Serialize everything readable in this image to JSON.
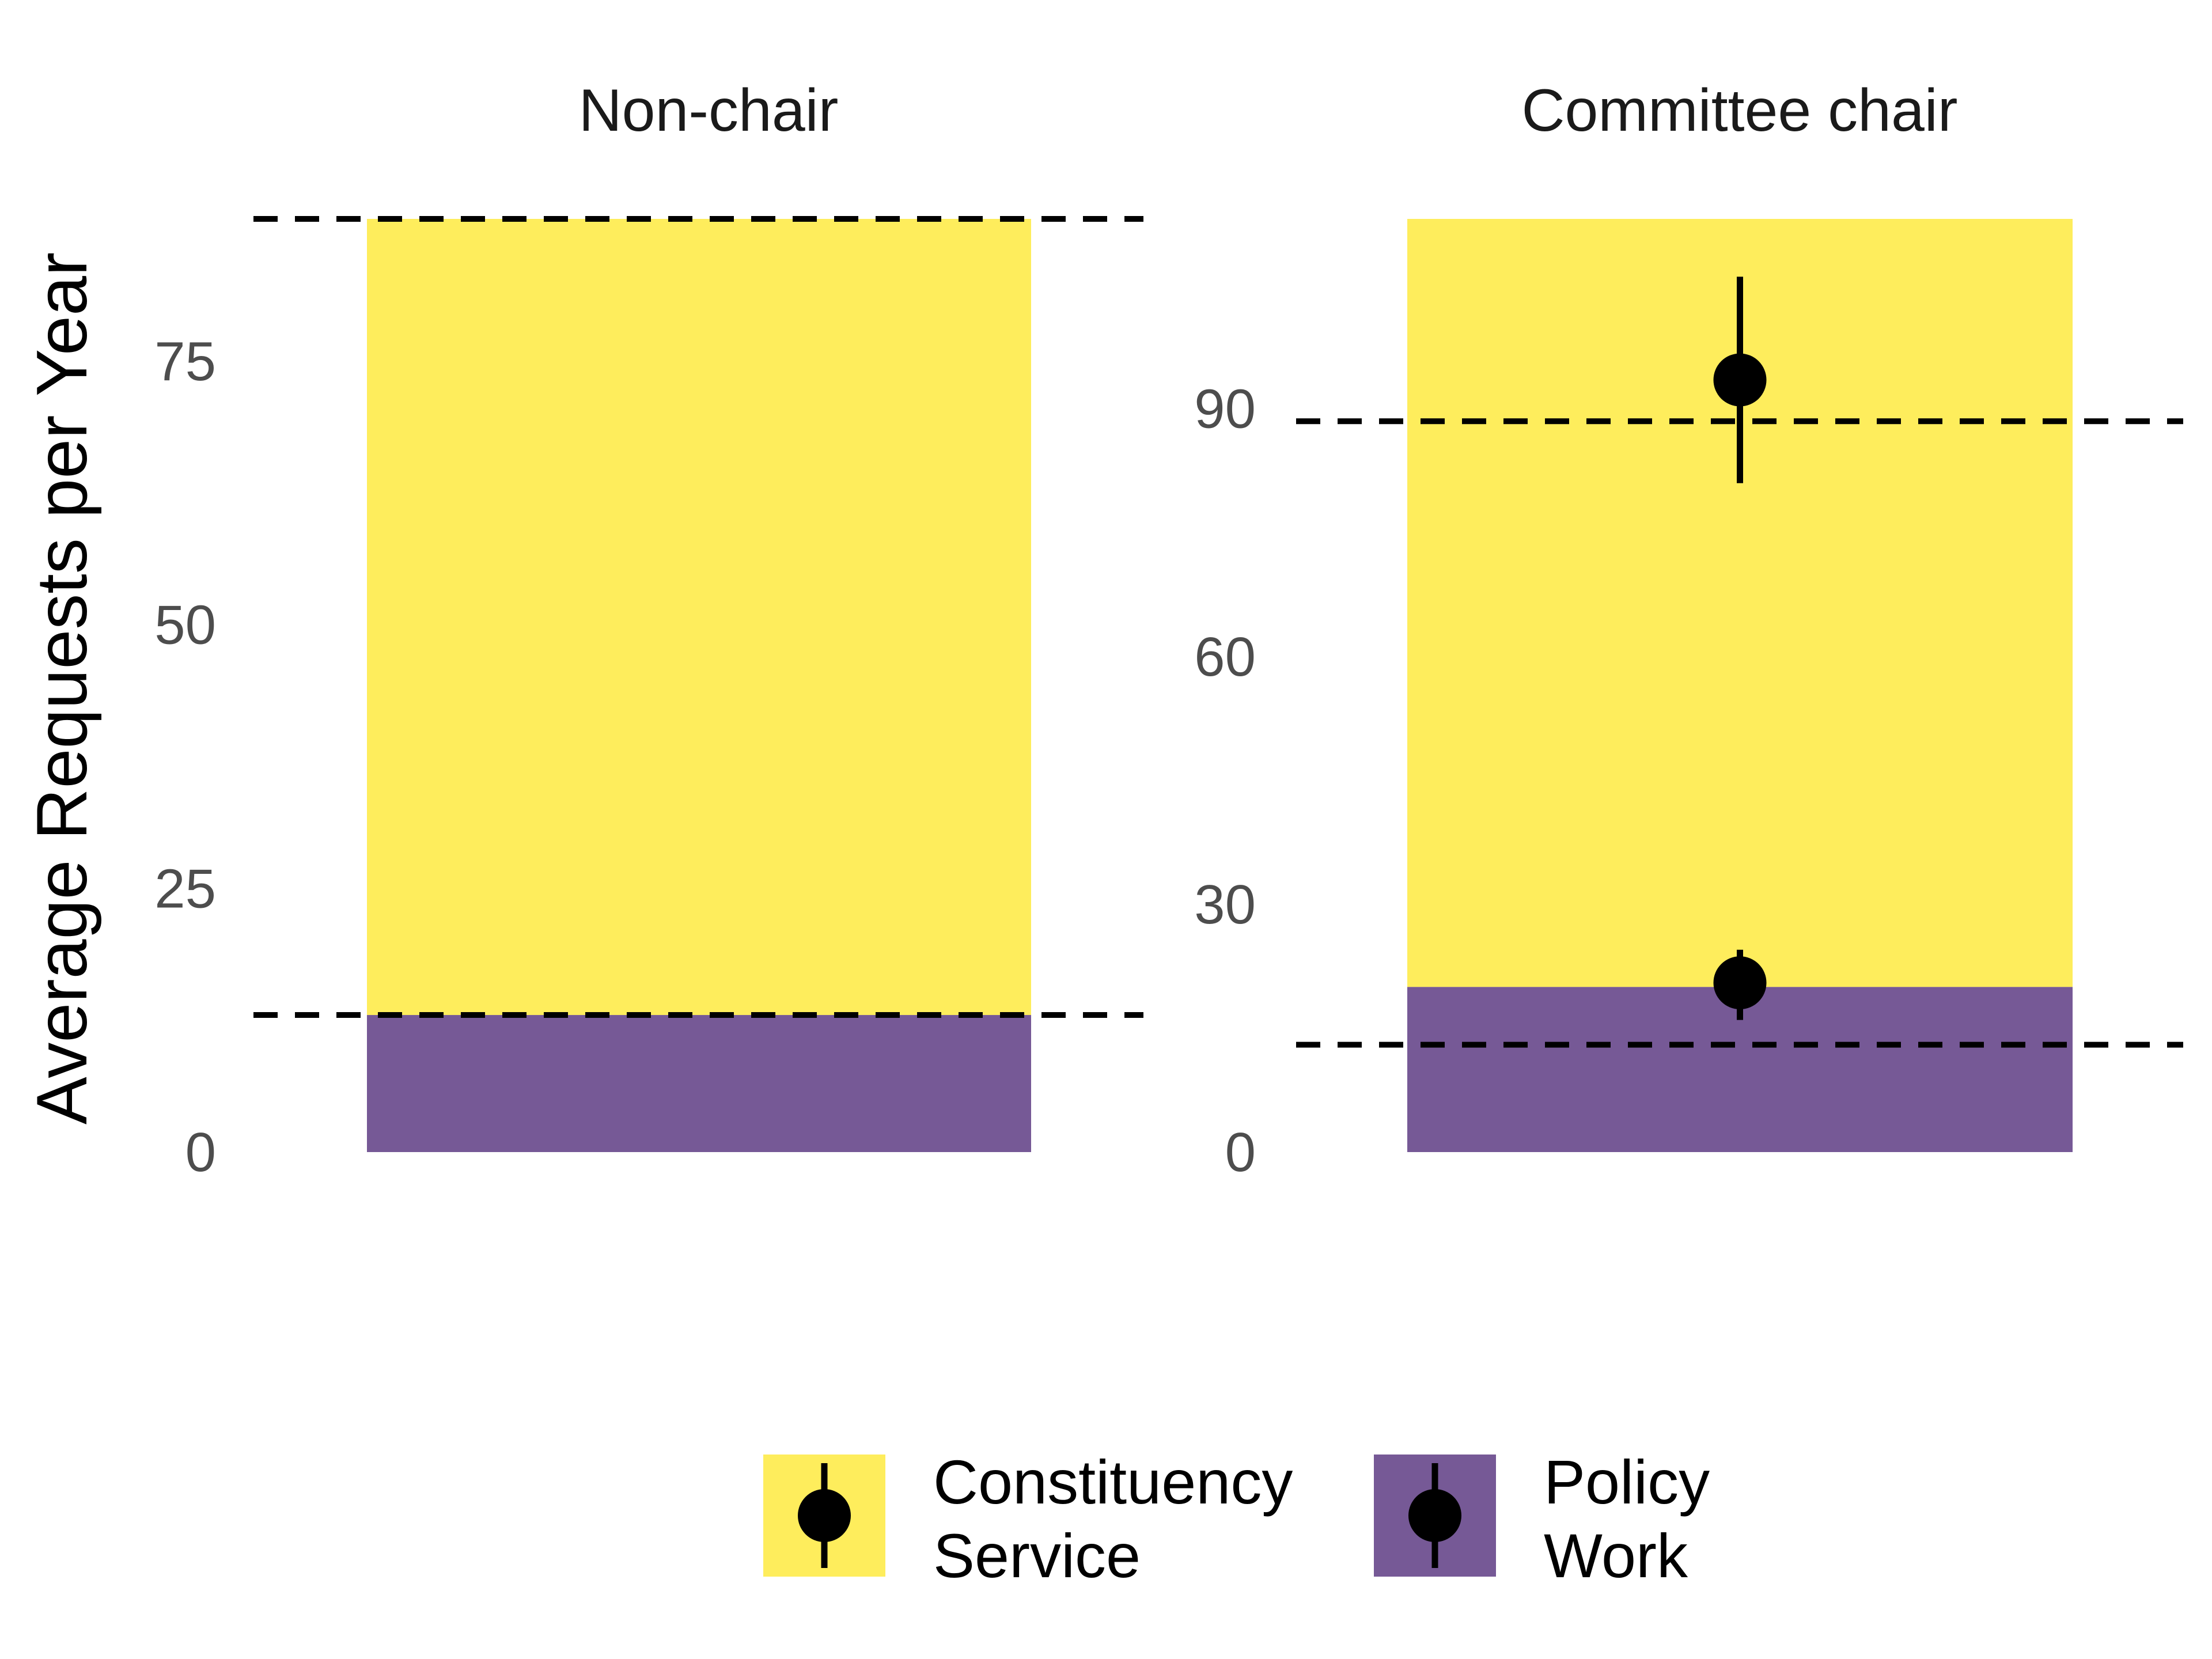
{
  "chart_data": {
    "type": "bar",
    "ylabel": "Average Requests per Year",
    "legend": {
      "position": "bottom",
      "entries": [
        {
          "key": "constituency",
          "label_lines": [
            "Constituency",
            "Service"
          ],
          "color": "#FDE725"
        },
        {
          "key": "policy",
          "label_lines": [
            "Policy",
            "Work"
          ],
          "color": "#482173"
        }
      ]
    },
    "fill_opacity": 0.75,
    "panels": [
      {
        "title": "Non-chair",
        "ylim": [
          0,
          88.5
        ],
        "yticks": [
          0,
          25,
          50,
          75
        ],
        "stack": [
          {
            "series": "policy",
            "value": 13
          },
          {
            "series": "constituency",
            "value": 75.5
          }
        ],
        "dashed_lines": [
          13,
          88.5
        ],
        "points": []
      },
      {
        "title": "Committee chair",
        "ylim": [
          0,
          113
        ],
        "yticks": [
          0,
          30,
          60,
          90
        ],
        "stack": [
          {
            "series": "policy",
            "value": 20
          },
          {
            "series": "constituency",
            "value": 93
          }
        ],
        "dashed_lines": [
          13,
          88.5
        ],
        "points": [
          {
            "series": "constituency",
            "y": 93.5,
            "ymin": 81,
            "ymax": 106
          },
          {
            "series": "policy",
            "y": 20.5,
            "ymin": 16,
            "ymax": 24.5
          }
        ]
      }
    ]
  }
}
